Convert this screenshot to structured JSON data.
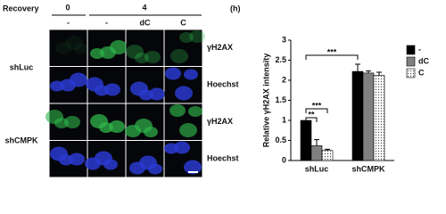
{
  "figure": {
    "recovery_label": "Recovery",
    "time_unit": "(h)",
    "timepoints": [
      "0",
      "4"
    ],
    "column_labels": [
      "-",
      "-",
      "dC",
      "C"
    ],
    "row_labels": [
      "shLuc",
      "shCMPK"
    ],
    "stain_labels": [
      "γH2AX",
      "Hoechst",
      "γH2AX",
      "Hoechst"
    ]
  },
  "chart_data": {
    "type": "bar",
    "ylabel": "Relative γH2AX intensity",
    "categories": [
      "shLuc",
      "shCMPK"
    ],
    "series": [
      {
        "name": "-",
        "color": "#000000",
        "values": [
          1.0,
          2.22
        ],
        "errors": [
          0,
          0.18
        ]
      },
      {
        "name": "dC",
        "color": "#808080",
        "values": [
          0.37,
          2.18
        ],
        "errors": [
          0.15,
          0.05
        ]
      },
      {
        "name": "C",
        "color": "#ffffff",
        "pattern": "dots",
        "values": [
          0.25,
          2.12
        ],
        "errors": [
          0.03,
          0.08
        ]
      }
    ],
    "ylim": [
      0,
      3
    ],
    "yticks": [
      0,
      0.5,
      1,
      1.5,
      2,
      2.5,
      3
    ],
    "legend": "right",
    "annotations": [
      "**",
      "***",
      "***"
    ]
  }
}
